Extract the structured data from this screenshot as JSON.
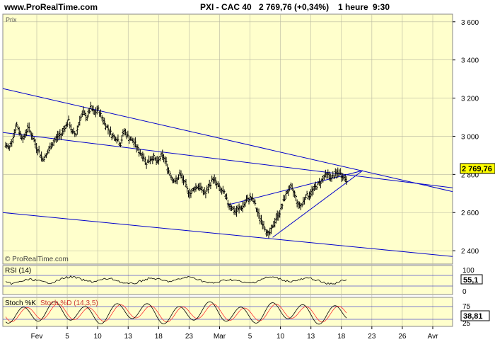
{
  "header": {
    "site": "www.ProRealTime.com",
    "instrument": "PXI - CAC 40",
    "price": "2 769,76 (+0,34%)",
    "period": "1 heure",
    "time": "9:30"
  },
  "panels": {
    "price_label": "Prix",
    "copyright": "© ProRealTime.com",
    "rsi_label": "RSI (14)",
    "rsi_value": "55,1",
    "rsi_levels": [
      "100",
      "0"
    ],
    "stoch_label": "Stoch %K",
    "stoch_d_label": "Stoch %D (14,3,5)",
    "stoch_value": "38,81",
    "stoch_levels": [
      "75",
      "25"
    ],
    "last_price_tag": "2 769,76"
  },
  "colors": {
    "background": "#ffffcc",
    "grid": "#b8b8a0",
    "trendline": "#0000cc",
    "bars": "#000000",
    "price_tag": "#ffff00",
    "stoch_k": "#000000",
    "stoch_d": "#ff3333"
  },
  "chart_data": {
    "type": "bar",
    "instrument": "PXI - CAC 40",
    "interval": "1 heure",
    "last": 2769.76,
    "change_pct": 0.34,
    "x_ticks": [
      "Fev",
      "5",
      "10",
      "13",
      "18",
      "23",
      "Mar",
      "5",
      "10",
      "13",
      "18",
      "23",
      "26",
      "Avr"
    ],
    "y_ticks": [
      "3 600",
      "3 400",
      "3 200",
      "3 000",
      "2 800",
      "2 600",
      "2 400"
    ],
    "ylim": [
      2330,
      3640
    ],
    "grid": true,
    "closes": [
      2950,
      2940,
      3000,
      3060,
      3010,
      2990,
      3050,
      3010,
      2960,
      2920,
      2880,
      2900,
      2940,
      2970,
      3000,
      3010,
      3050,
      3080,
      3020,
      3010,
      3090,
      3120,
      3100,
      3150,
      3120,
      3140,
      3100,
      3060,
      3030,
      3000,
      2990,
      2960,
      3030,
      3000,
      2980,
      2960,
      2920,
      2900,
      2860,
      2880,
      2890,
      2860,
      2900,
      2880,
      2820,
      2780,
      2760,
      2800,
      2770,
      2720,
      2700,
      2730,
      2740,
      2720,
      2700,
      2740,
      2780,
      2750,
      2720,
      2700,
      2650,
      2630,
      2600,
      2620,
      2630,
      2660,
      2680,
      2660,
      2600,
      2560,
      2520,
      2480,
      2520,
      2570,
      2600,
      2660,
      2710,
      2730,
      2700,
      2640,
      2640,
      2690,
      2690,
      2720,
      2740,
      2760,
      2790,
      2800,
      2780,
      2800,
      2810,
      2790,
      2770
    ],
    "trendlines": [
      {
        "from": {
          "x": 0,
          "y": 3250
        },
        "to": {
          "x": 100,
          "y": 2710
        }
      },
      {
        "from": {
          "x": 0,
          "y": 3020
        },
        "to": {
          "x": 100,
          "y": 2730
        }
      },
      {
        "from": {
          "x": 0,
          "y": 2600
        },
        "to": {
          "x": 100,
          "y": 2370
        }
      },
      {
        "from": {
          "x": 50,
          "y": 2640
        },
        "to": {
          "x": 80,
          "y": 2820
        }
      },
      {
        "from": {
          "x": 60,
          "y": 2470
        },
        "to": {
          "x": 80,
          "y": 2820
        }
      }
    ],
    "rsi": {
      "name": "RSI (14)",
      "value": 55.1,
      "levels": [
        100,
        0
      ]
    },
    "stochastic": {
      "name": "Stoch %K",
      "d_name": "Stoch %D (14,3,5)",
      "value": 38.81,
      "levels": [
        75,
        25
      ]
    }
  }
}
